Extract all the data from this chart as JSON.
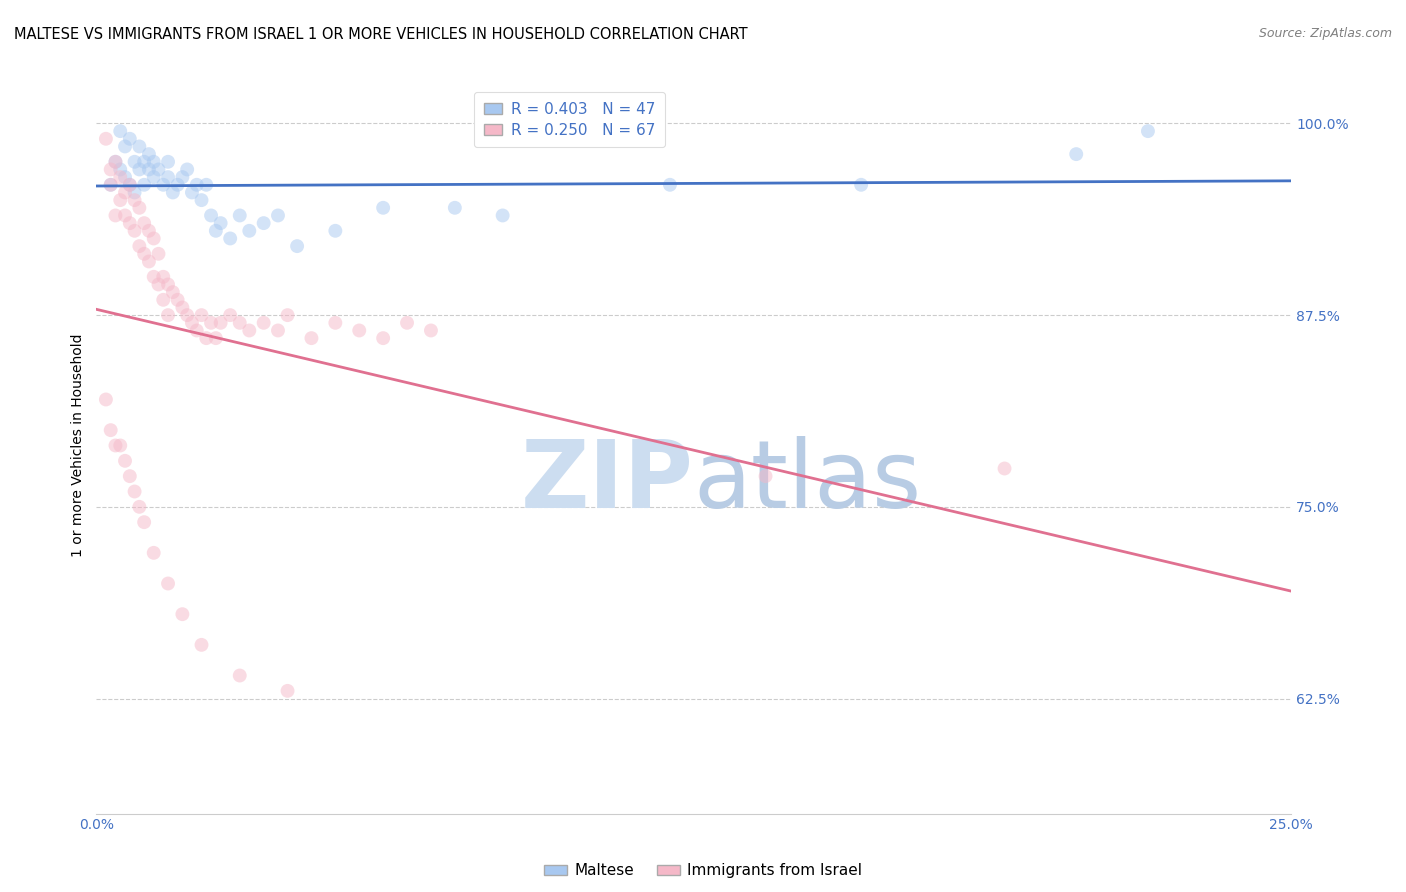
{
  "title": "MALTESE VS IMMIGRANTS FROM ISRAEL 1 OR MORE VEHICLES IN HOUSEHOLD CORRELATION CHART",
  "source": "Source: ZipAtlas.com",
  "ylabel": "1 or more Vehicles in Household",
  "blue_R": 0.403,
  "blue_N": 47,
  "pink_R": 0.25,
  "pink_N": 67,
  "blue_color": "#a8c8f0",
  "pink_color": "#f5b8c8",
  "blue_line_color": "#4472c4",
  "pink_line_color": "#e07090",
  "axis_label_color": "#4472c4",
  "background_color": "#ffffff",
  "grid_color": "#cccccc",
  "xlim": [
    0.0,
    0.25
  ],
  "ylim": [
    0.55,
    1.03
  ],
  "xticks": [
    0.0,
    0.05,
    0.1,
    0.15,
    0.2,
    0.25
  ],
  "xticklabels": [
    "0.0%",
    "",
    "",
    "",
    "",
    "25.0%"
  ],
  "yticks": [
    0.625,
    0.75,
    0.875,
    1.0
  ],
  "yticklabels": [
    "62.5%",
    "75.0%",
    "87.5%",
    "100.0%"
  ],
  "blue_scatter_x": [
    0.003,
    0.004,
    0.005,
    0.005,
    0.006,
    0.006,
    0.007,
    0.007,
    0.008,
    0.008,
    0.009,
    0.009,
    0.01,
    0.01,
    0.011,
    0.011,
    0.012,
    0.012,
    0.013,
    0.014,
    0.015,
    0.015,
    0.016,
    0.017,
    0.018,
    0.019,
    0.02,
    0.021,
    0.022,
    0.023,
    0.024,
    0.025,
    0.026,
    0.028,
    0.03,
    0.032,
    0.035,
    0.038,
    0.042,
    0.05,
    0.06,
    0.075,
    0.085,
    0.12,
    0.16,
    0.205,
    0.22
  ],
  "blue_scatter_y": [
    0.96,
    0.975,
    0.97,
    0.995,
    0.965,
    0.985,
    0.96,
    0.99,
    0.955,
    0.975,
    0.97,
    0.985,
    0.96,
    0.975,
    0.97,
    0.98,
    0.965,
    0.975,
    0.97,
    0.96,
    0.965,
    0.975,
    0.955,
    0.96,
    0.965,
    0.97,
    0.955,
    0.96,
    0.95,
    0.96,
    0.94,
    0.93,
    0.935,
    0.925,
    0.94,
    0.93,
    0.935,
    0.94,
    0.92,
    0.93,
    0.945,
    0.945,
    0.94,
    0.96,
    0.96,
    0.98,
    0.995
  ],
  "pink_scatter_x": [
    0.002,
    0.003,
    0.003,
    0.004,
    0.004,
    0.005,
    0.005,
    0.006,
    0.006,
    0.007,
    0.007,
    0.008,
    0.008,
    0.009,
    0.009,
    0.01,
    0.01,
    0.011,
    0.011,
    0.012,
    0.012,
    0.013,
    0.013,
    0.014,
    0.014,
    0.015,
    0.015,
    0.016,
    0.017,
    0.018,
    0.019,
    0.02,
    0.021,
    0.022,
    0.023,
    0.024,
    0.025,
    0.026,
    0.028,
    0.03,
    0.032,
    0.035,
    0.038,
    0.04,
    0.045,
    0.05,
    0.055,
    0.06,
    0.065,
    0.07,
    0.002,
    0.003,
    0.004,
    0.005,
    0.006,
    0.007,
    0.008,
    0.009,
    0.01,
    0.012,
    0.015,
    0.018,
    0.022,
    0.03,
    0.04,
    0.14,
    0.19
  ],
  "pink_scatter_y": [
    0.99,
    0.97,
    0.96,
    0.975,
    0.94,
    0.965,
    0.95,
    0.955,
    0.94,
    0.96,
    0.935,
    0.95,
    0.93,
    0.945,
    0.92,
    0.935,
    0.915,
    0.93,
    0.91,
    0.925,
    0.9,
    0.915,
    0.895,
    0.9,
    0.885,
    0.895,
    0.875,
    0.89,
    0.885,
    0.88,
    0.875,
    0.87,
    0.865,
    0.875,
    0.86,
    0.87,
    0.86,
    0.87,
    0.875,
    0.87,
    0.865,
    0.87,
    0.865,
    0.875,
    0.86,
    0.87,
    0.865,
    0.86,
    0.87,
    0.865,
    0.82,
    0.8,
    0.79,
    0.79,
    0.78,
    0.77,
    0.76,
    0.75,
    0.74,
    0.72,
    0.7,
    0.68,
    0.66,
    0.64,
    0.63,
    0.77,
    0.775
  ],
  "marker_size": 100,
  "marker_alpha": 0.5,
  "title_fontsize": 10.5,
  "source_fontsize": 9,
  "tick_fontsize": 10,
  "ylabel_fontsize": 10,
  "legend_fontsize": 11
}
